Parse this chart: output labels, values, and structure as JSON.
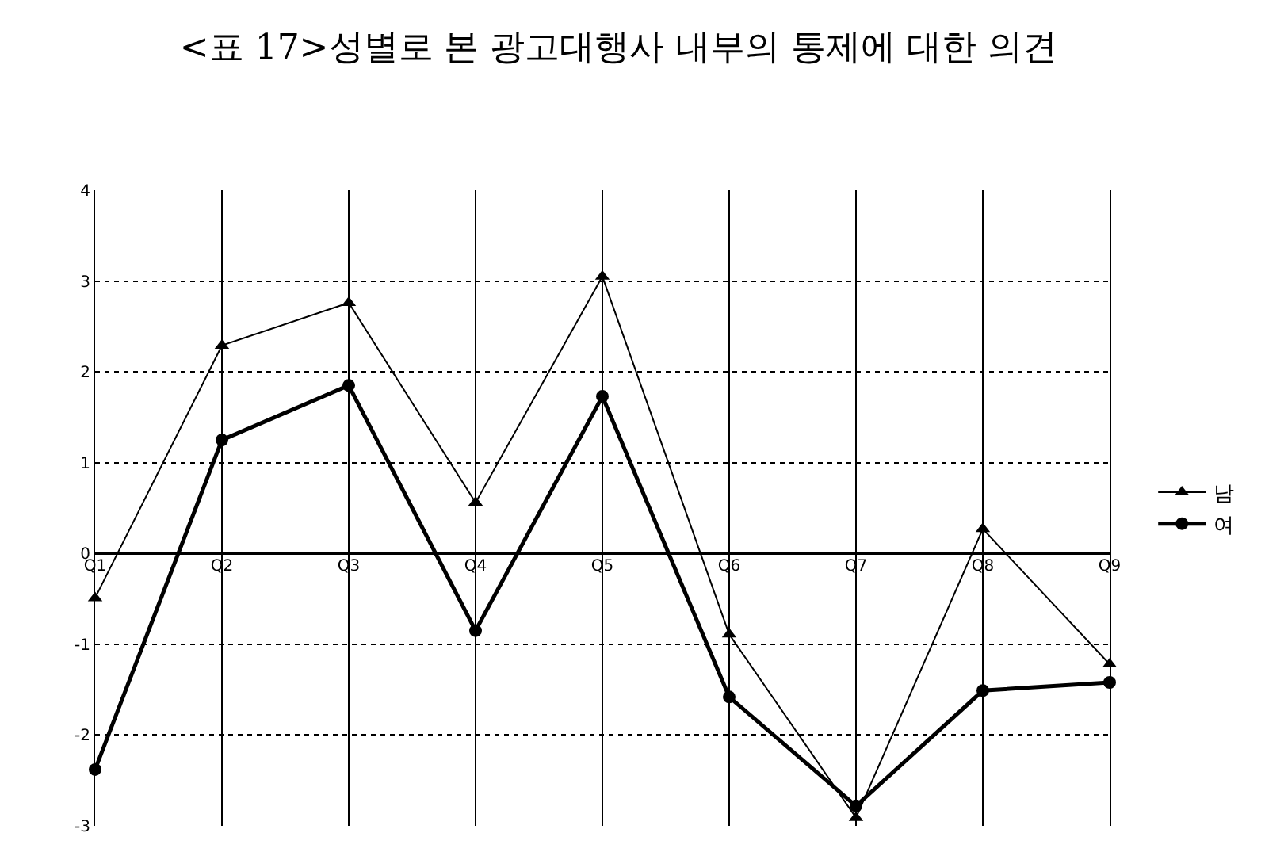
{
  "chart_data": {
    "type": "line",
    "title": "<표 17>성별로 본 광고대행사 내부의 통제에 대한 의견",
    "categories": [
      "Q1",
      "Q2",
      "Q3",
      "Q4",
      "Q5",
      "Q6",
      "Q7",
      "Q8",
      "Q9"
    ],
    "series": [
      {
        "name": "남",
        "color": "#000000",
        "marker": "triangle",
        "values": [
          -0.49,
          2.29,
          2.76,
          0.56,
          3.05,
          -0.89,
          -2.91,
          0.27,
          -1.22
        ]
      },
      {
        "name": "여",
        "color": "#000000",
        "marker": "circle",
        "values": [
          -2.38,
          1.25,
          1.85,
          -0.85,
          1.73,
          -1.58,
          -2.78,
          -1.51,
          -1.42
        ]
      }
    ],
    "ylim": [
      -3,
      4
    ],
    "yticks": [
      -3,
      -2,
      -1,
      0,
      1,
      2,
      3,
      4
    ],
    "grid": true,
    "legend": "right",
    "line_style": "solid"
  }
}
